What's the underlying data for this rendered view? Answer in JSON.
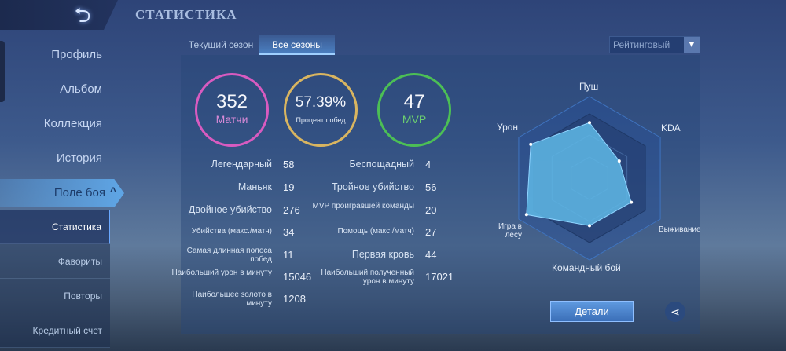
{
  "header": {
    "title": "СТАТИСТИКА",
    "back_icon": "back-arrow-icon"
  },
  "sidebar": {
    "items": [
      {
        "label": "Профиль"
      },
      {
        "label": "Альбом"
      },
      {
        "label": "Коллекция"
      },
      {
        "label": "История"
      },
      {
        "label": "Поле боя",
        "expanded": true
      }
    ],
    "sub_items": [
      {
        "label": "Статистика",
        "active": true
      },
      {
        "label": "Фавориты"
      },
      {
        "label": "Повторы"
      },
      {
        "label": "Кредитный счет"
      }
    ]
  },
  "tabs": [
    {
      "label": "Текущий сезон"
    },
    {
      "label": "Все сезоны",
      "active": true
    }
  ],
  "mode_select": {
    "value": "Рейтинговый"
  },
  "summary": [
    {
      "value": "352",
      "label": "Матчи",
      "color": "#d85bc0"
    },
    {
      "value": "57.39%",
      "label": "Процент побед",
      "color": "#d9b560"
    },
    {
      "value": "47",
      "label": "MVP",
      "color": "#4cbf55"
    }
  ],
  "stats_left": [
    {
      "label": "Легендарный",
      "value": "58"
    },
    {
      "label": "Маньяк",
      "value": "19"
    },
    {
      "label": "Двойное убийство",
      "value": "276"
    },
    {
      "label": "Убийства (макс./матч)",
      "value": "34",
      "small": true
    },
    {
      "label": "Самая длинная полоса побед",
      "value": "11",
      "small": true
    },
    {
      "label": "Наибольший урон в минуту",
      "value": "15046",
      "small": true
    },
    {
      "label": "Наибольшее золото в минуту",
      "value": "1208",
      "small": true
    }
  ],
  "stats_right": [
    {
      "label": "Беспощадный",
      "value": "4"
    },
    {
      "label": "Тройное убийство",
      "value": "56"
    },
    {
      "label": "MVP проигравшей команды",
      "value": "20",
      "small": true
    },
    {
      "label": "Помощь (макс./матч)",
      "value": "27",
      "small": true
    },
    {
      "label": "Первая кровь",
      "value": "44"
    },
    {
      "label": "Наибольший полученный урон в минуту",
      "value": "17021",
      "small": true
    }
  ],
  "chart_data": {
    "type": "radar",
    "axes": [
      "Пуш",
      "KDA",
      "Выживание",
      "Командный бой",
      "Игра в лесу",
      "Урон"
    ],
    "values": [
      68,
      42,
      59,
      58,
      89,
      83
    ],
    "range": [
      0,
      100
    ],
    "fill_color": "#5ab4e0"
  },
  "buttons": {
    "details": "Детали",
    "share_icon": "share-icon"
  }
}
